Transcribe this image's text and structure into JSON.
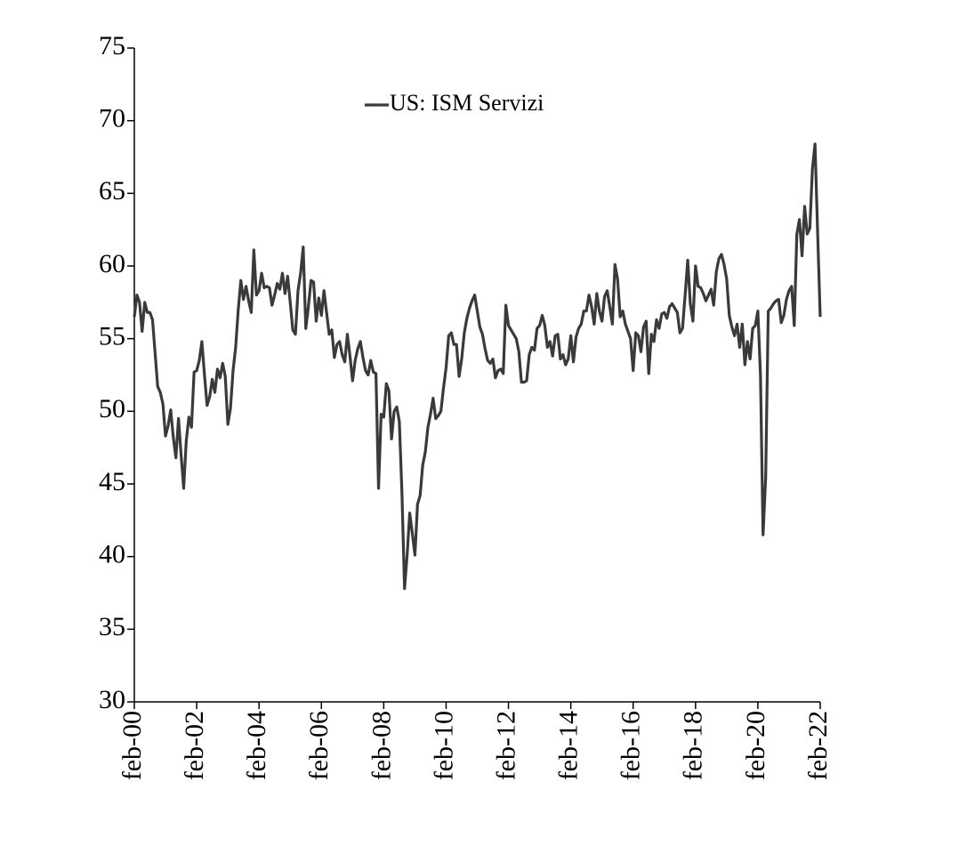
{
  "chart_data": {
    "type": "line",
    "categories": [
      "feb-00",
      null,
      null,
      null,
      null,
      null,
      null,
      null,
      null,
      null,
      null,
      null,
      null,
      null,
      null,
      null,
      null,
      null,
      null,
      null,
      null,
      null,
      null,
      null,
      "feb-02",
      null,
      null,
      null,
      null,
      null,
      null,
      null,
      null,
      null,
      null,
      null,
      null,
      null,
      null,
      null,
      null,
      null,
      null,
      null,
      null,
      null,
      null,
      null,
      "feb-04",
      null,
      null,
      null,
      null,
      null,
      null,
      null,
      null,
      null,
      null,
      null,
      null,
      null,
      null,
      null,
      null,
      null,
      null,
      null,
      null,
      null,
      null,
      null,
      "feb-06",
      null,
      null,
      null,
      null,
      null,
      null,
      null,
      null,
      null,
      null,
      null,
      null,
      null,
      null,
      null,
      null,
      null,
      null,
      null,
      null,
      null,
      null,
      null,
      "feb-08",
      null,
      null,
      null,
      null,
      null,
      null,
      null,
      null,
      null,
      null,
      null,
      null,
      null,
      null,
      null,
      null,
      null,
      null,
      null,
      null,
      null,
      null,
      null,
      "feb-10",
      null,
      null,
      null,
      null,
      null,
      null,
      null,
      null,
      null,
      null,
      null,
      null,
      null,
      null,
      null,
      null,
      null,
      null,
      null,
      null,
      null,
      null,
      null,
      "feb-12",
      null,
      null,
      null,
      null,
      null,
      null,
      null,
      null,
      null,
      null,
      null,
      null,
      null,
      null,
      null,
      null,
      null,
      null,
      null,
      null,
      null,
      null,
      null,
      "feb-14",
      null,
      null,
      null,
      null,
      null,
      null,
      null,
      null,
      null,
      null,
      null,
      null,
      null,
      null,
      null,
      null,
      null,
      null,
      null,
      null,
      null,
      null,
      null,
      "feb-16",
      null,
      null,
      null,
      null,
      null,
      null,
      null,
      null,
      null,
      null,
      null,
      null,
      null,
      null,
      null,
      null,
      null,
      null,
      null,
      null,
      null,
      null,
      null,
      "feb-18",
      null,
      null,
      null,
      null,
      null,
      null,
      null,
      null,
      null,
      null,
      null,
      null,
      null,
      null,
      null,
      null,
      null,
      null,
      null,
      null,
      null,
      null,
      null,
      "feb-20",
      null,
      null,
      null,
      null,
      null,
      null,
      null,
      null,
      null,
      null,
      null,
      null,
      null,
      null,
      null,
      null,
      null,
      null,
      null,
      null,
      null,
      null,
      null,
      "feb-22"
    ],
    "series": [
      {
        "name": "US: ISM Servizi",
        "color": "#3a3a3a",
        "values": [
          56.5,
          58,
          57.5,
          55.5,
          57.5,
          56.8,
          56.8,
          56.3,
          54,
          51.7,
          51.3,
          50.5,
          48.3,
          49,
          50.1,
          48.2,
          46.8,
          49.5,
          47,
          44.7,
          48,
          49.6,
          48.9,
          52.7,
          52.8,
          53.5,
          54.8,
          52.5,
          50.4,
          51,
          52.2,
          51.3,
          52.9,
          52.3,
          53.3,
          52.4,
          49.1,
          50.2,
          52.8,
          54.4,
          57,
          59,
          57.7,
          58.6,
          57.6,
          56.8,
          61.1,
          58,
          58.3,
          59.5,
          58.5,
          58.6,
          58.5,
          57.3,
          58,
          58.8,
          58.4,
          59.5,
          58.1,
          59.3,
          57.5,
          55.6,
          55.3,
          58.3,
          59.5,
          61.3,
          55.7,
          57.2,
          59,
          58.9,
          56.2,
          57.8,
          56.6,
          58.3,
          56.8,
          55.3,
          55.6,
          53.7,
          54.6,
          54.8,
          53.9,
          53.4,
          55.3,
          53.8,
          52.1,
          53.5,
          54.3,
          54.8,
          53.7,
          52.8,
          52.5,
          53.5,
          52.7,
          52.6,
          44.7,
          49.8,
          49.6,
          51.9,
          51.4,
          48.1,
          50,
          50.3,
          49.3,
          44.4,
          37.8,
          40.1,
          43,
          41.6,
          40.1,
          43.6,
          44.2,
          46.3,
          47.2,
          48.9,
          49.8,
          50.9,
          49.5,
          49.7,
          50,
          51.6,
          53,
          55.2,
          55.4,
          54.6,
          54.6,
          52.4,
          53.6,
          55.4,
          56.4,
          57.1,
          57.6,
          58,
          56.9,
          55.8,
          55.3,
          54.3,
          53.5,
          53.3,
          53.6,
          52.3,
          52.8,
          52.9,
          52.6,
          57.3,
          55.9,
          55.6,
          55.3,
          55,
          54.1,
          52,
          52,
          52.1,
          53.9,
          54.4,
          54.2,
          55.7,
          55.9,
          56.6,
          55.9,
          54.4,
          54.8,
          53.8,
          55.2,
          55.3,
          53.6,
          53.9,
          53.2,
          53.6,
          55.2,
          53.4,
          55.1,
          55.7,
          56,
          56.9,
          56.9,
          58,
          57.2,
          56,
          58.1,
          56.9,
          56.2,
          57.9,
          58.3,
          57.2,
          56,
          60.1,
          59.1,
          56.5,
          56.9,
          56,
          55.5,
          55,
          52.8,
          55.4,
          55.2,
          54.1,
          55.8,
          56.2,
          52.6,
          55.3,
          54.8,
          56.3,
          55.7,
          56.7,
          56.8,
          56.4,
          57.2,
          57.4,
          57.1,
          56.8,
          55.4,
          55.7,
          58,
          60.4,
          57.4,
          56.2,
          60,
          58.6,
          58.5,
          58.1,
          57.6,
          58,
          58.4,
          57.3,
          59.6,
          60.5,
          60.8,
          60.1,
          59.1,
          56.6,
          55.8,
          55.2,
          56,
          54.4,
          56,
          53.2,
          54.8,
          53.6,
          55.7,
          55.9,
          56.9,
          52.5,
          41.5,
          45.4,
          56.9,
          57.1,
          57.4,
          57.6,
          57.7,
          56.1,
          56.6,
          57.7,
          58.3,
          58.6,
          55.9,
          62.2,
          63.2,
          60.7,
          64.1,
          62.2,
          62.6,
          66.7,
          68.4,
          62.3,
          56.5
        ]
      }
    ],
    "ylim": [
      30,
      75
    ],
    "yticks": [
      30,
      35,
      40,
      45,
      50,
      55,
      60,
      65,
      70,
      75
    ],
    "grid": false,
    "legend": "top"
  }
}
